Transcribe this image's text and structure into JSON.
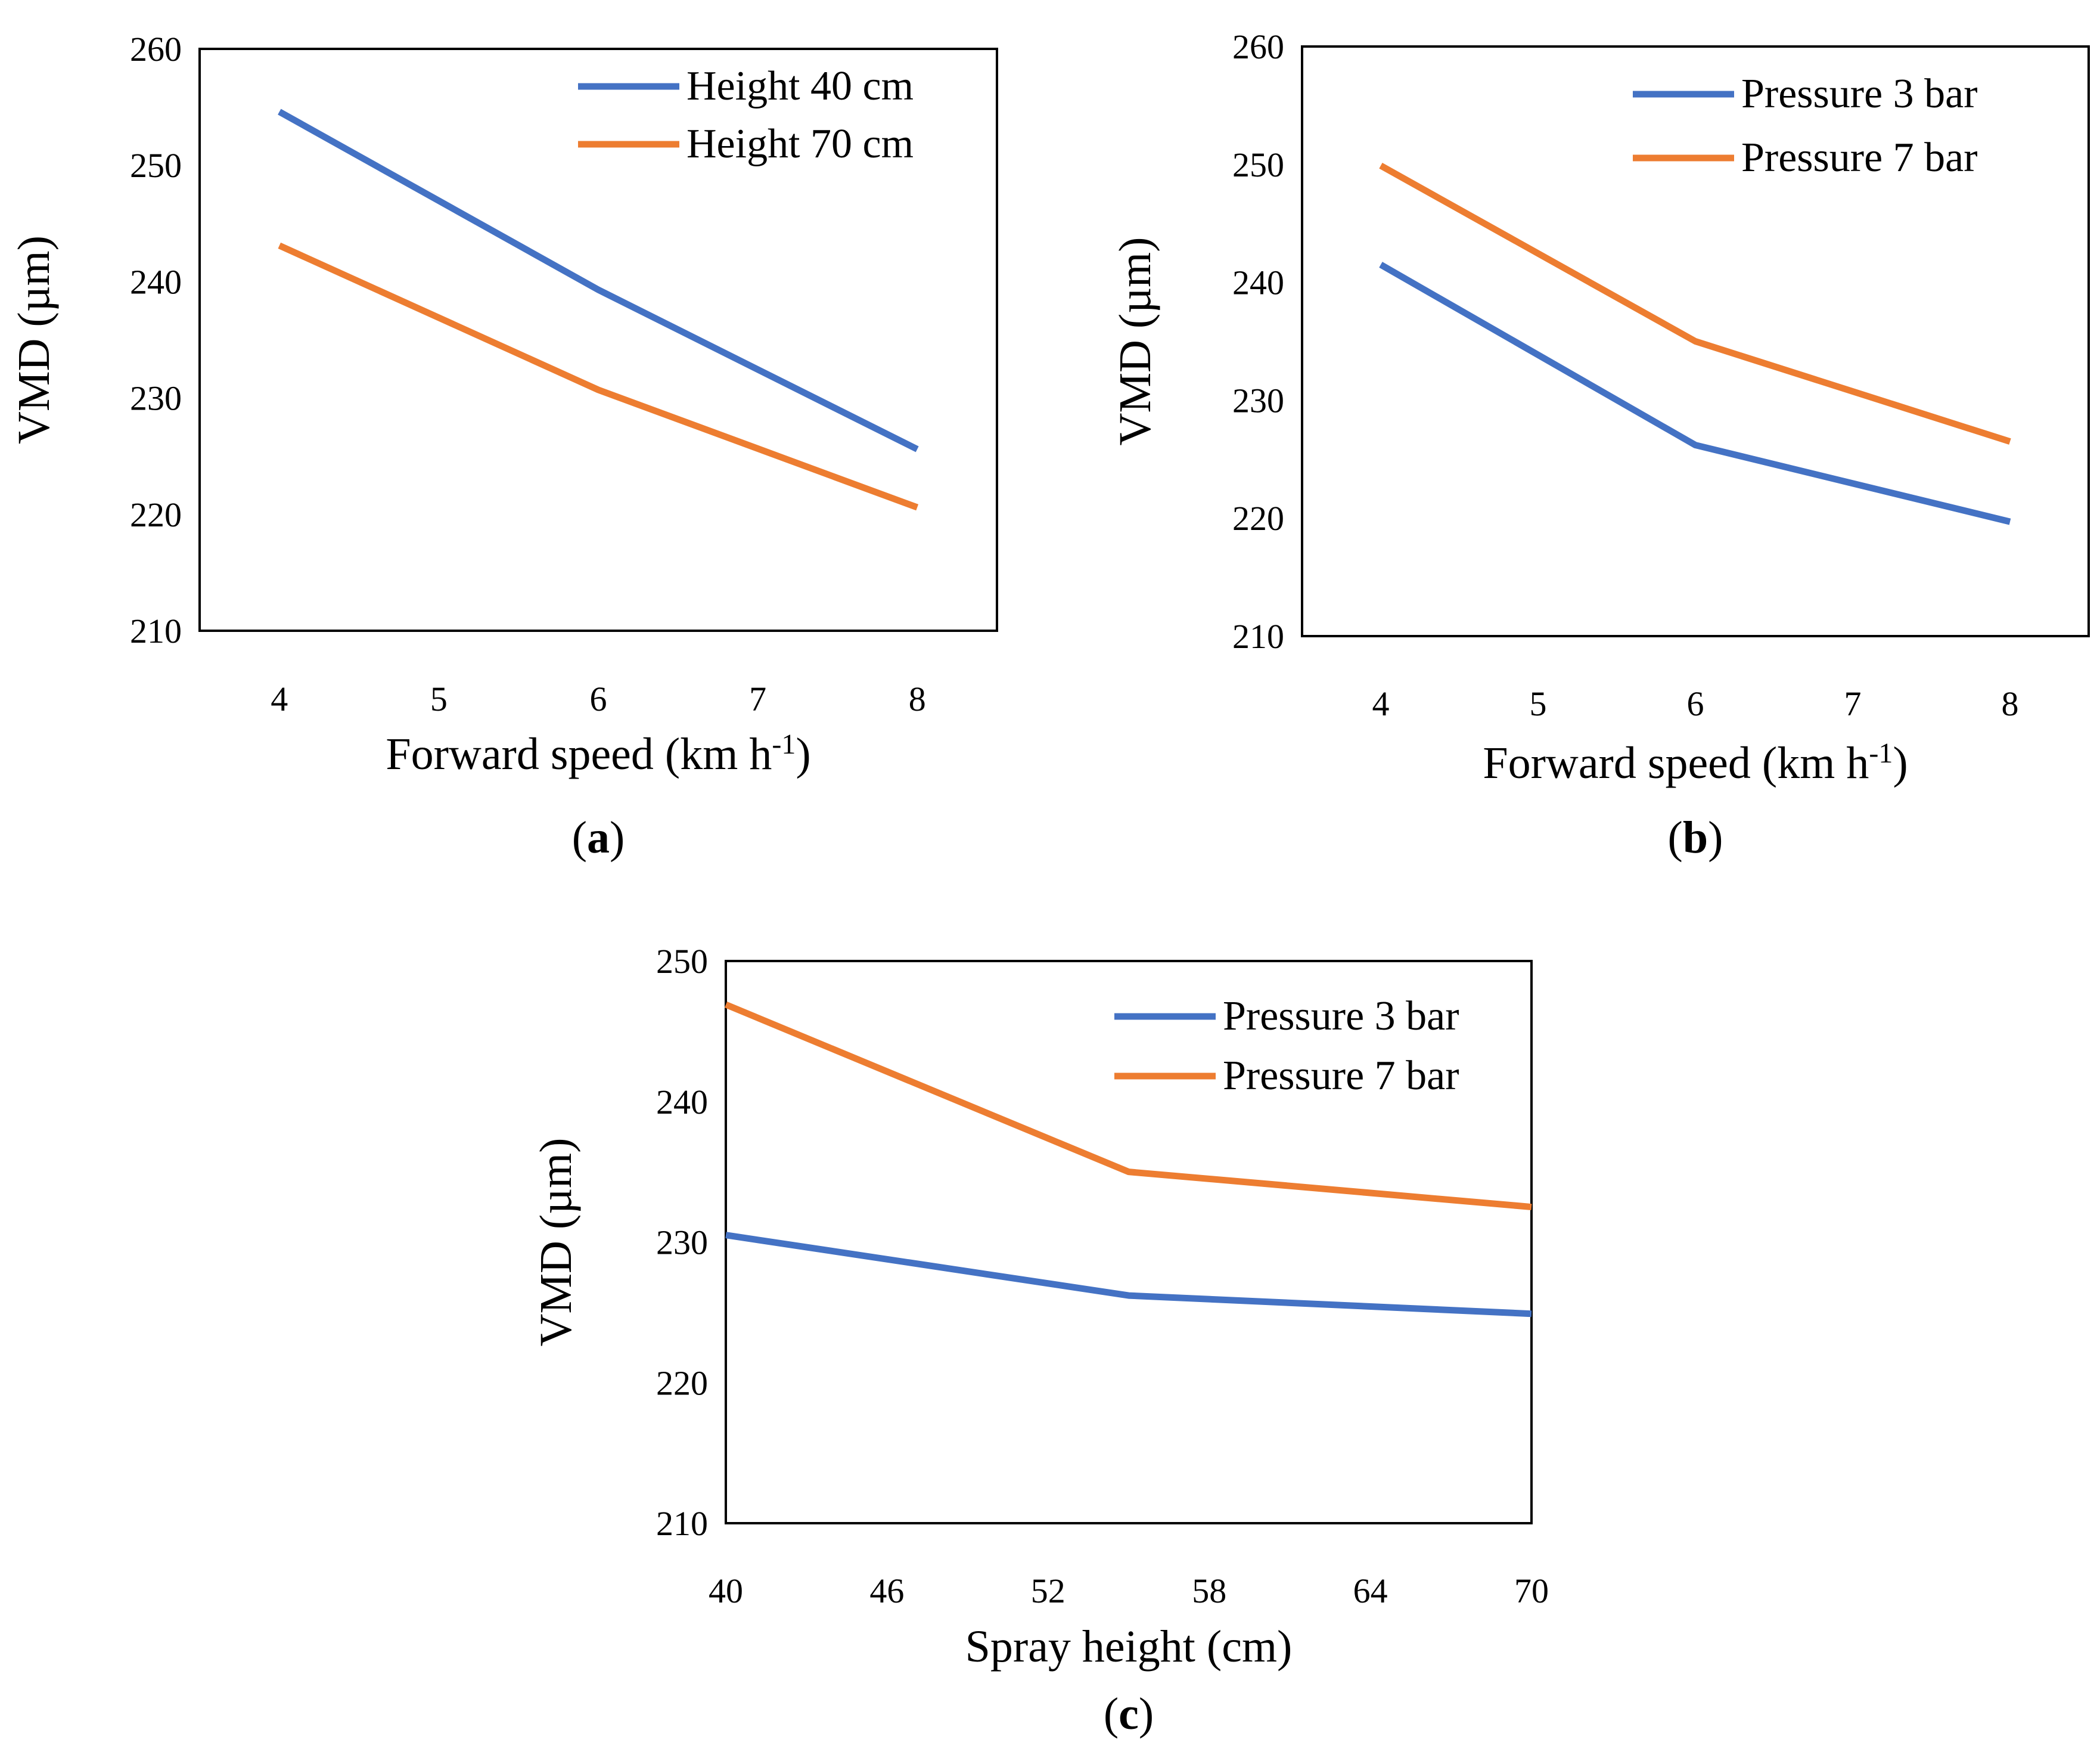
{
  "colors": {
    "series_1": "#4472C4",
    "series_2": "#ED7D31",
    "frame": "#000000"
  },
  "chart_data": [
    {
      "panel_label": "a",
      "type": "line",
      "xlabel": "Forward speed (km h",
      "xlabel_sup": "-1",
      "xlabel_close": ")",
      "ylabel": "VMD (µm)",
      "xlim": [
        3.5,
        8.5
      ],
      "ylim": [
        210,
        260
      ],
      "xticks": [
        4,
        5,
        6,
        7,
        8
      ],
      "yticks": [
        210,
        220,
        230,
        240,
        250,
        260
      ],
      "legend_position": "top-right",
      "series": [
        {
          "name": "Height 40 cm",
          "color": "#4472C4",
          "x": [
            4,
            6,
            8
          ],
          "y": [
            254.6,
            239.3,
            225.6
          ]
        },
        {
          "name": "Height 70 cm",
          "color": "#ED7D31",
          "x": [
            4,
            6,
            8
          ],
          "y": [
            243.1,
            230.7,
            220.6
          ]
        }
      ]
    },
    {
      "panel_label": "b",
      "type": "line",
      "xlabel": "Forward speed (km h",
      "xlabel_sup": "-1",
      "xlabel_close": ")",
      "ylabel": "VMD (µm)",
      "xlim": [
        3.5,
        8.5
      ],
      "ylim": [
        210,
        260
      ],
      "xticks": [
        4,
        5,
        6,
        7,
        8
      ],
      "yticks": [
        210,
        220,
        230,
        240,
        250,
        260
      ],
      "legend_position": "top-right",
      "series": [
        {
          "name": "Pressure 3 bar",
          "color": "#4472C4",
          "x": [
            4,
            6,
            8
          ],
          "y": [
            241.5,
            226.2,
            219.7
          ]
        },
        {
          "name": "Pressure 7 bar",
          "color": "#ED7D31",
          "x": [
            4,
            6,
            8
          ],
          "y": [
            249.9,
            235.0,
            226.5
          ]
        }
      ]
    },
    {
      "panel_label": "c",
      "type": "line",
      "xlabel": "Spray height (cm)",
      "ylabel": "VMD (µm)",
      "xlim": [
        40,
        70
      ],
      "ylim": [
        210,
        250
      ],
      "xticks": [
        40,
        46,
        52,
        58,
        64,
        70
      ],
      "yticks": [
        210,
        220,
        230,
        240,
        250
      ],
      "legend_position": "top-right",
      "series": [
        {
          "name": "Pressure 3 bar",
          "color": "#4472C4",
          "x": [
            40,
            55,
            70
          ],
          "y": [
            230.5,
            226.2,
            224.9
          ]
        },
        {
          "name": "Pressure 7 bar",
          "color": "#ED7D31",
          "x": [
            40,
            55,
            70
          ],
          "y": [
            246.9,
            235.0,
            232.5
          ]
        }
      ]
    }
  ]
}
